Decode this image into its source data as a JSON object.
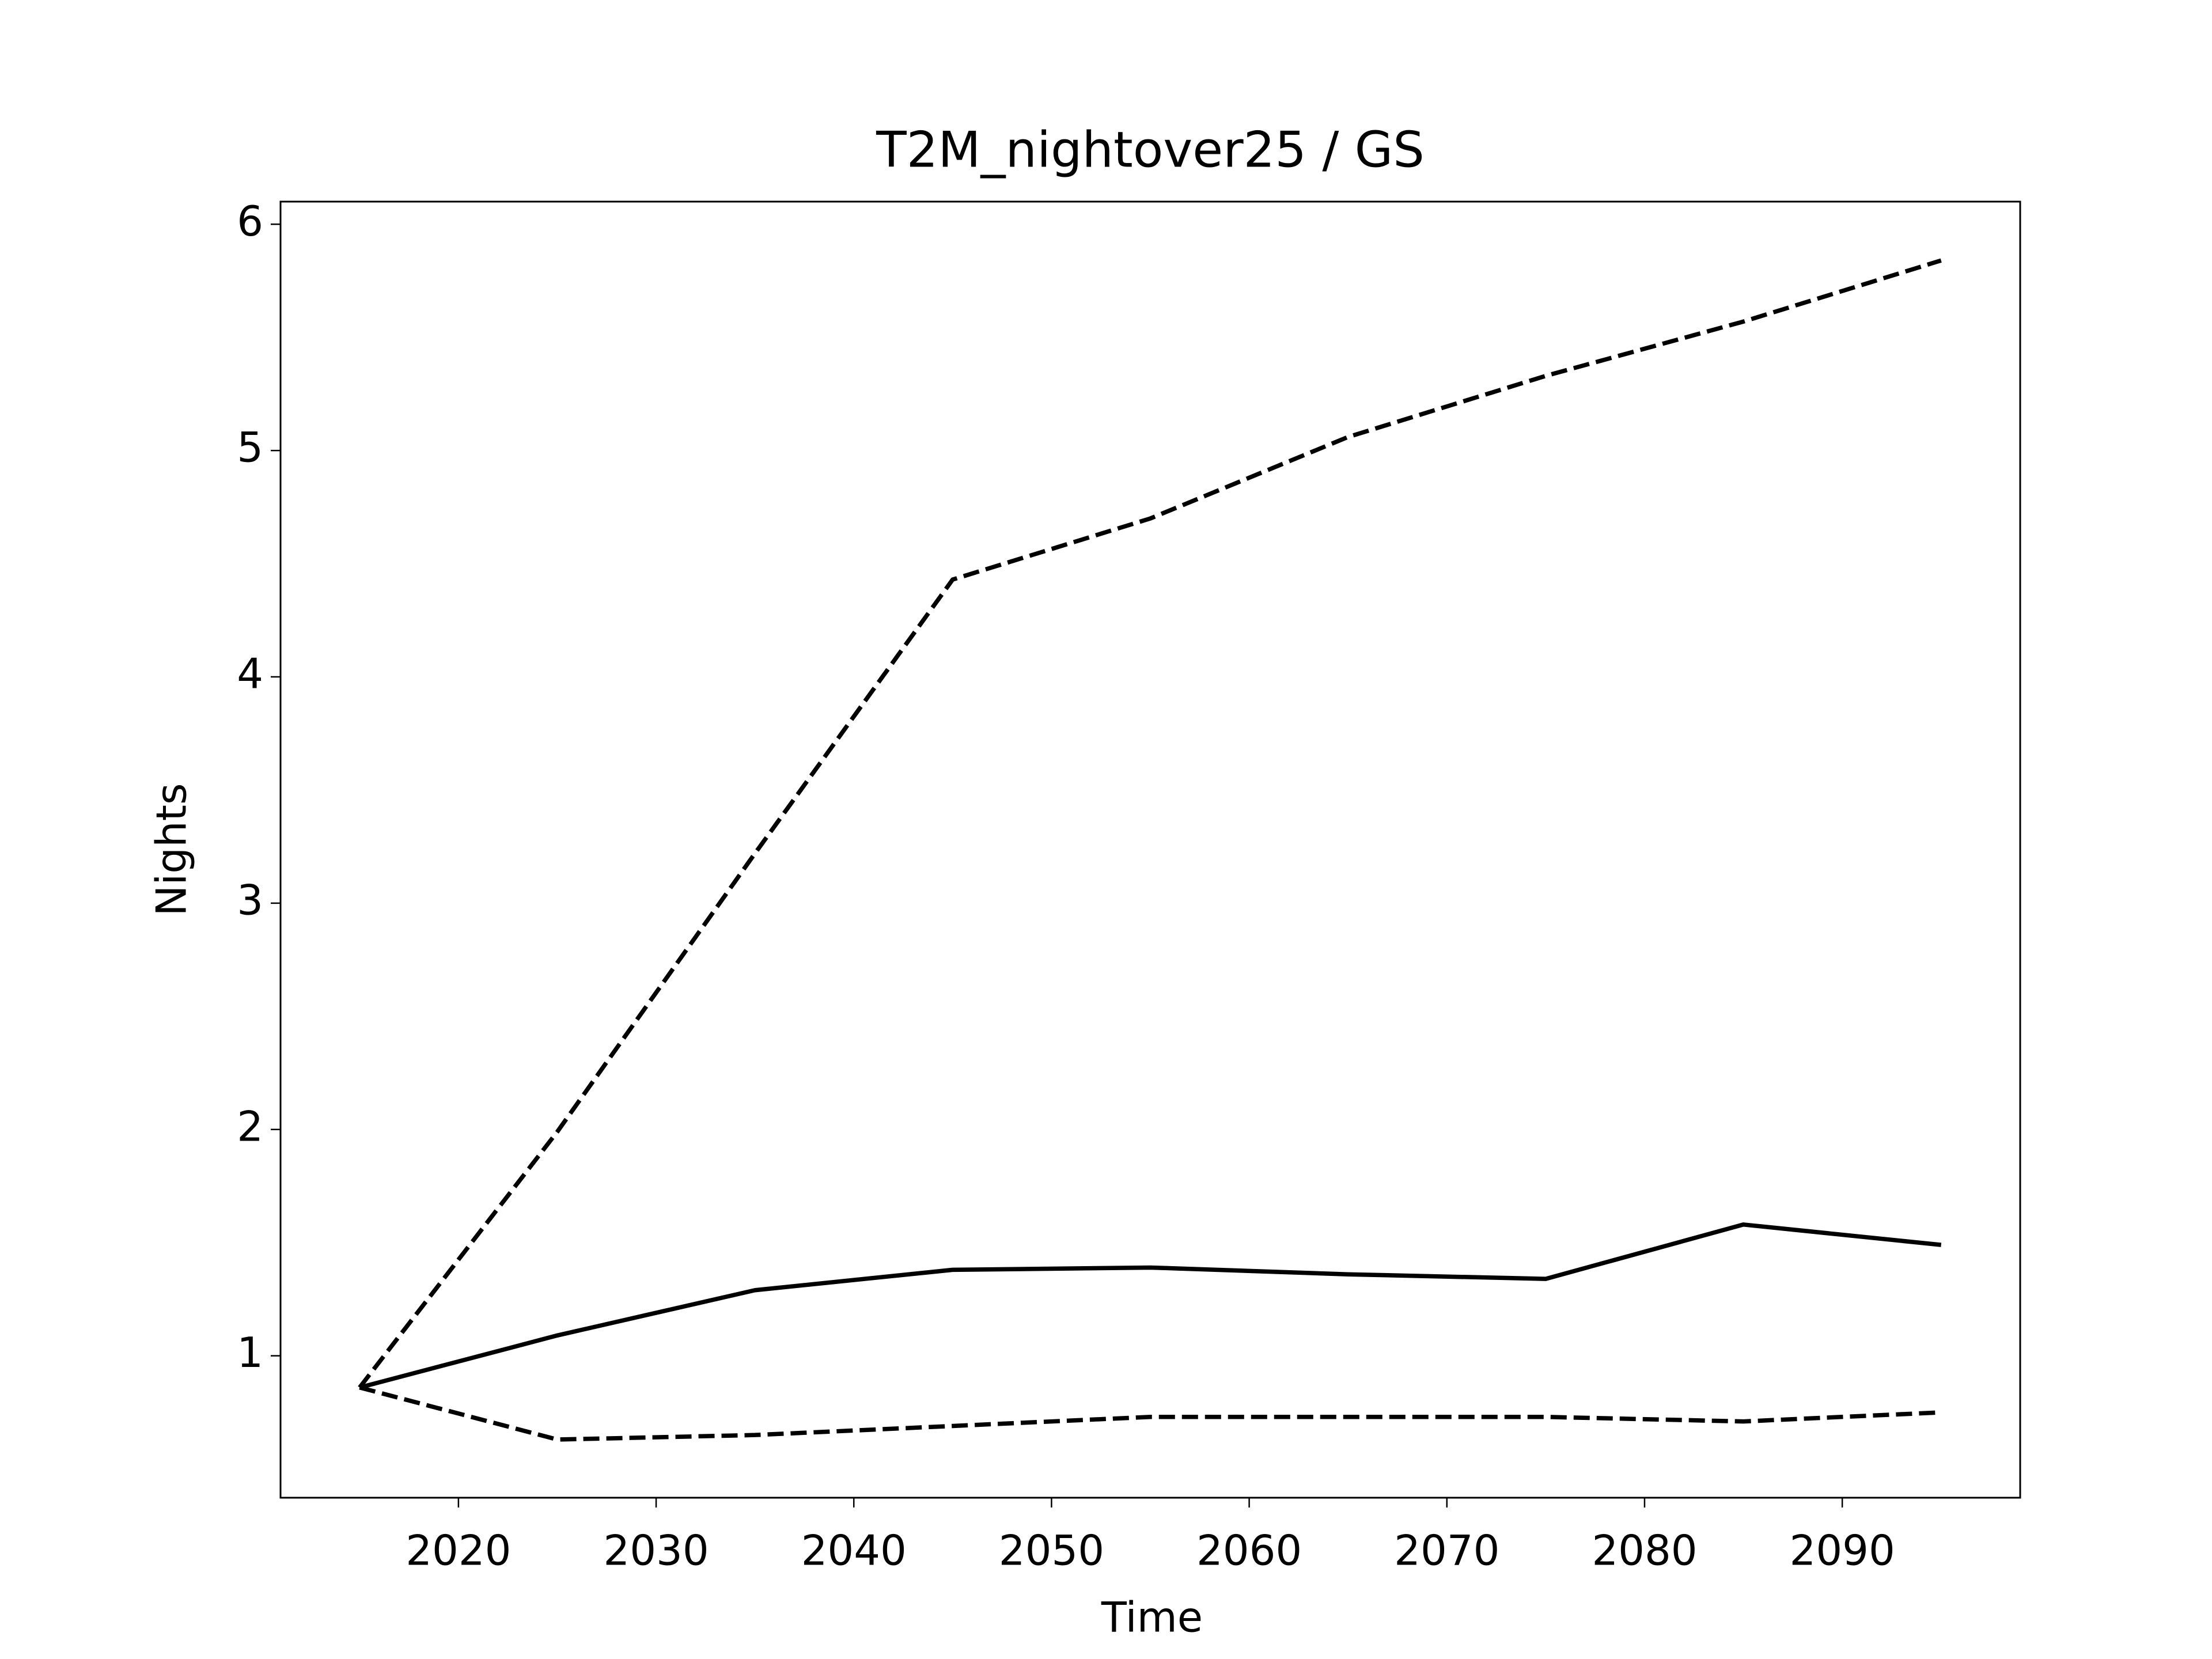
{
  "chart_data": {
    "type": "line",
    "title": "T2M_nightover25 / GS",
    "x_label": "Time",
    "y_label": "Nights",
    "x": [
      2015,
      2025,
      2035,
      2045,
      2055,
      2065,
      2075,
      2085,
      2095
    ],
    "series": [
      {
        "color": "#000000",
        "linestyle": "solid",
        "values": [
          0.86,
          1.09,
          1.29,
          1.38,
          1.39,
          1.36,
          1.34,
          1.58,
          1.49
        ]
      },
      {
        "color": "#000000",
        "linestyle": "dashed",
        "values": [
          0.86,
          1.99,
          3.22,
          4.43,
          4.7,
          5.06,
          5.33,
          5.57,
          5.84
        ]
      },
      {
        "color": "#000000",
        "linestyle": "dashed",
        "values": [
          0.86,
          0.63,
          0.65,
          0.69,
          0.73,
          0.73,
          0.73,
          0.71,
          0.75
        ]
      }
    ],
    "xlim": [
      2011,
      2099
    ],
    "xticks": [
      2020,
      2030,
      2040,
      2050,
      2060,
      2070,
      2080,
      2090
    ],
    "ylim": [
      0.373,
      6.1
    ],
    "yticks": [
      1,
      2,
      3,
      4,
      5,
      6
    ],
    "grid": false
  }
}
